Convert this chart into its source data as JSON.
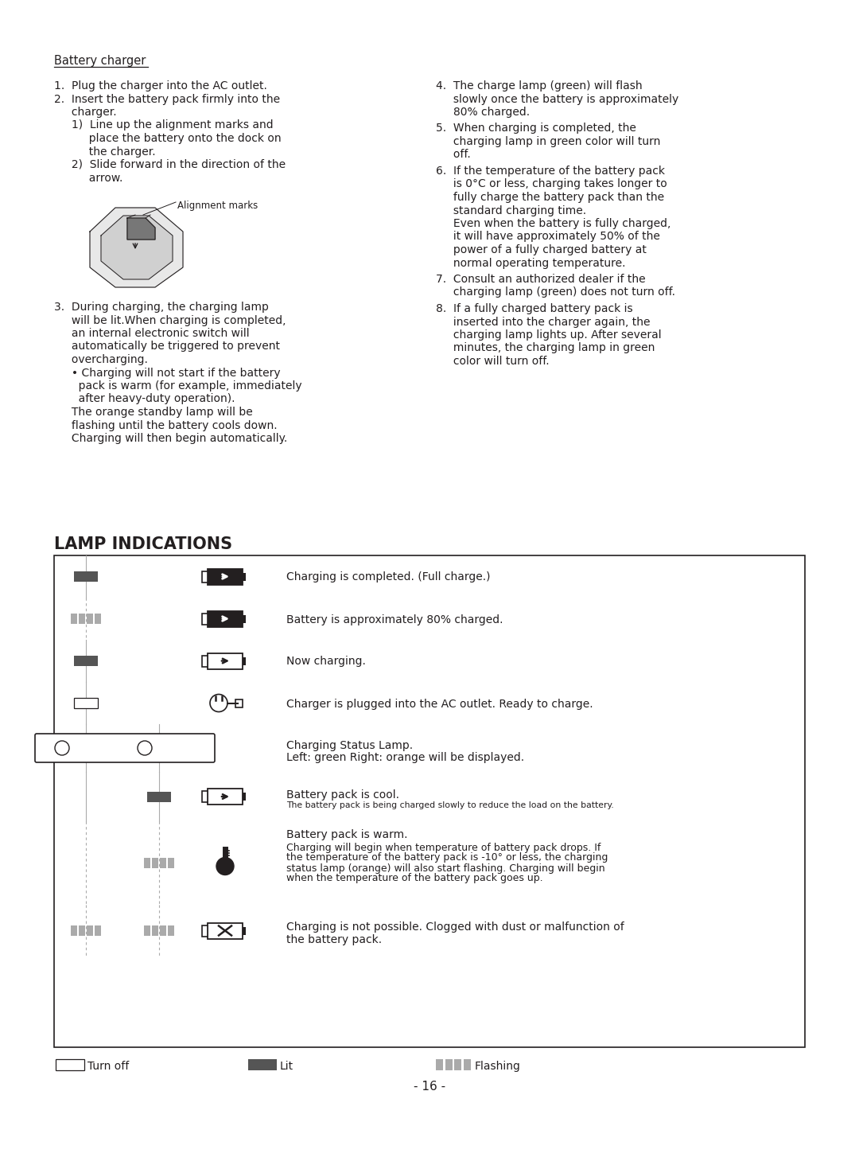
{
  "bg_color": "#ffffff",
  "text_color": "#231f20",
  "title": "LAMP INDICATIONS",
  "page_number": "- 16 -",
  "battery_charger_heading": "Battery charger",
  "alignment_marks_label": "Alignment marks"
}
